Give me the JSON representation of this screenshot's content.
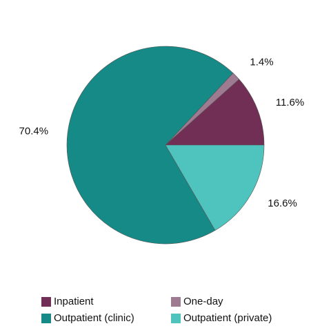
{
  "chart_data": {
    "type": "pie",
    "categories": [
      "Inpatient",
      "One-day",
      "Outpatient (clinic)",
      "Outpatient (private)"
    ],
    "values": [
      11.6,
      1.4,
      70.4,
      16.6
    ],
    "value_labels": [
      "11.6%",
      "1.4%",
      "70.4%",
      "16.6%"
    ],
    "colors": [
      "#722f55",
      "#9e7b90",
      "#168a86",
      "#4fc3be"
    ],
    "legend": "bottom"
  }
}
